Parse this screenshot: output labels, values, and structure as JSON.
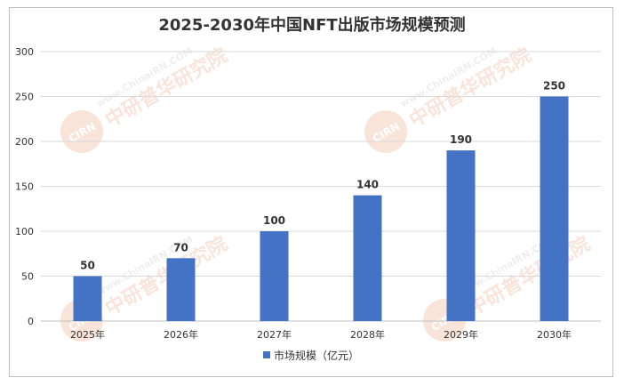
{
  "chart_data": {
    "type": "bar",
    "title": "2025-2030年中国NFT出版市场规模预测",
    "categories": [
      "2025年",
      "2026年",
      "2027年",
      "2028年",
      "2029年",
      "2030年"
    ],
    "series": [
      {
        "name": "市场规模（亿元）",
        "values": [
          50,
          70,
          100,
          140,
          190,
          250
        ],
        "color": "#4472C4"
      }
    ],
    "ylim": [
      0,
      300
    ],
    "yticks": [
      0,
      50,
      100,
      150,
      200,
      250,
      300
    ],
    "grid": true,
    "legend": "bottom"
  },
  "watermark": {
    "url": "www.ChinaIRN.COM",
    "name": "中研普华研究院",
    "logo": "CIRN"
  }
}
